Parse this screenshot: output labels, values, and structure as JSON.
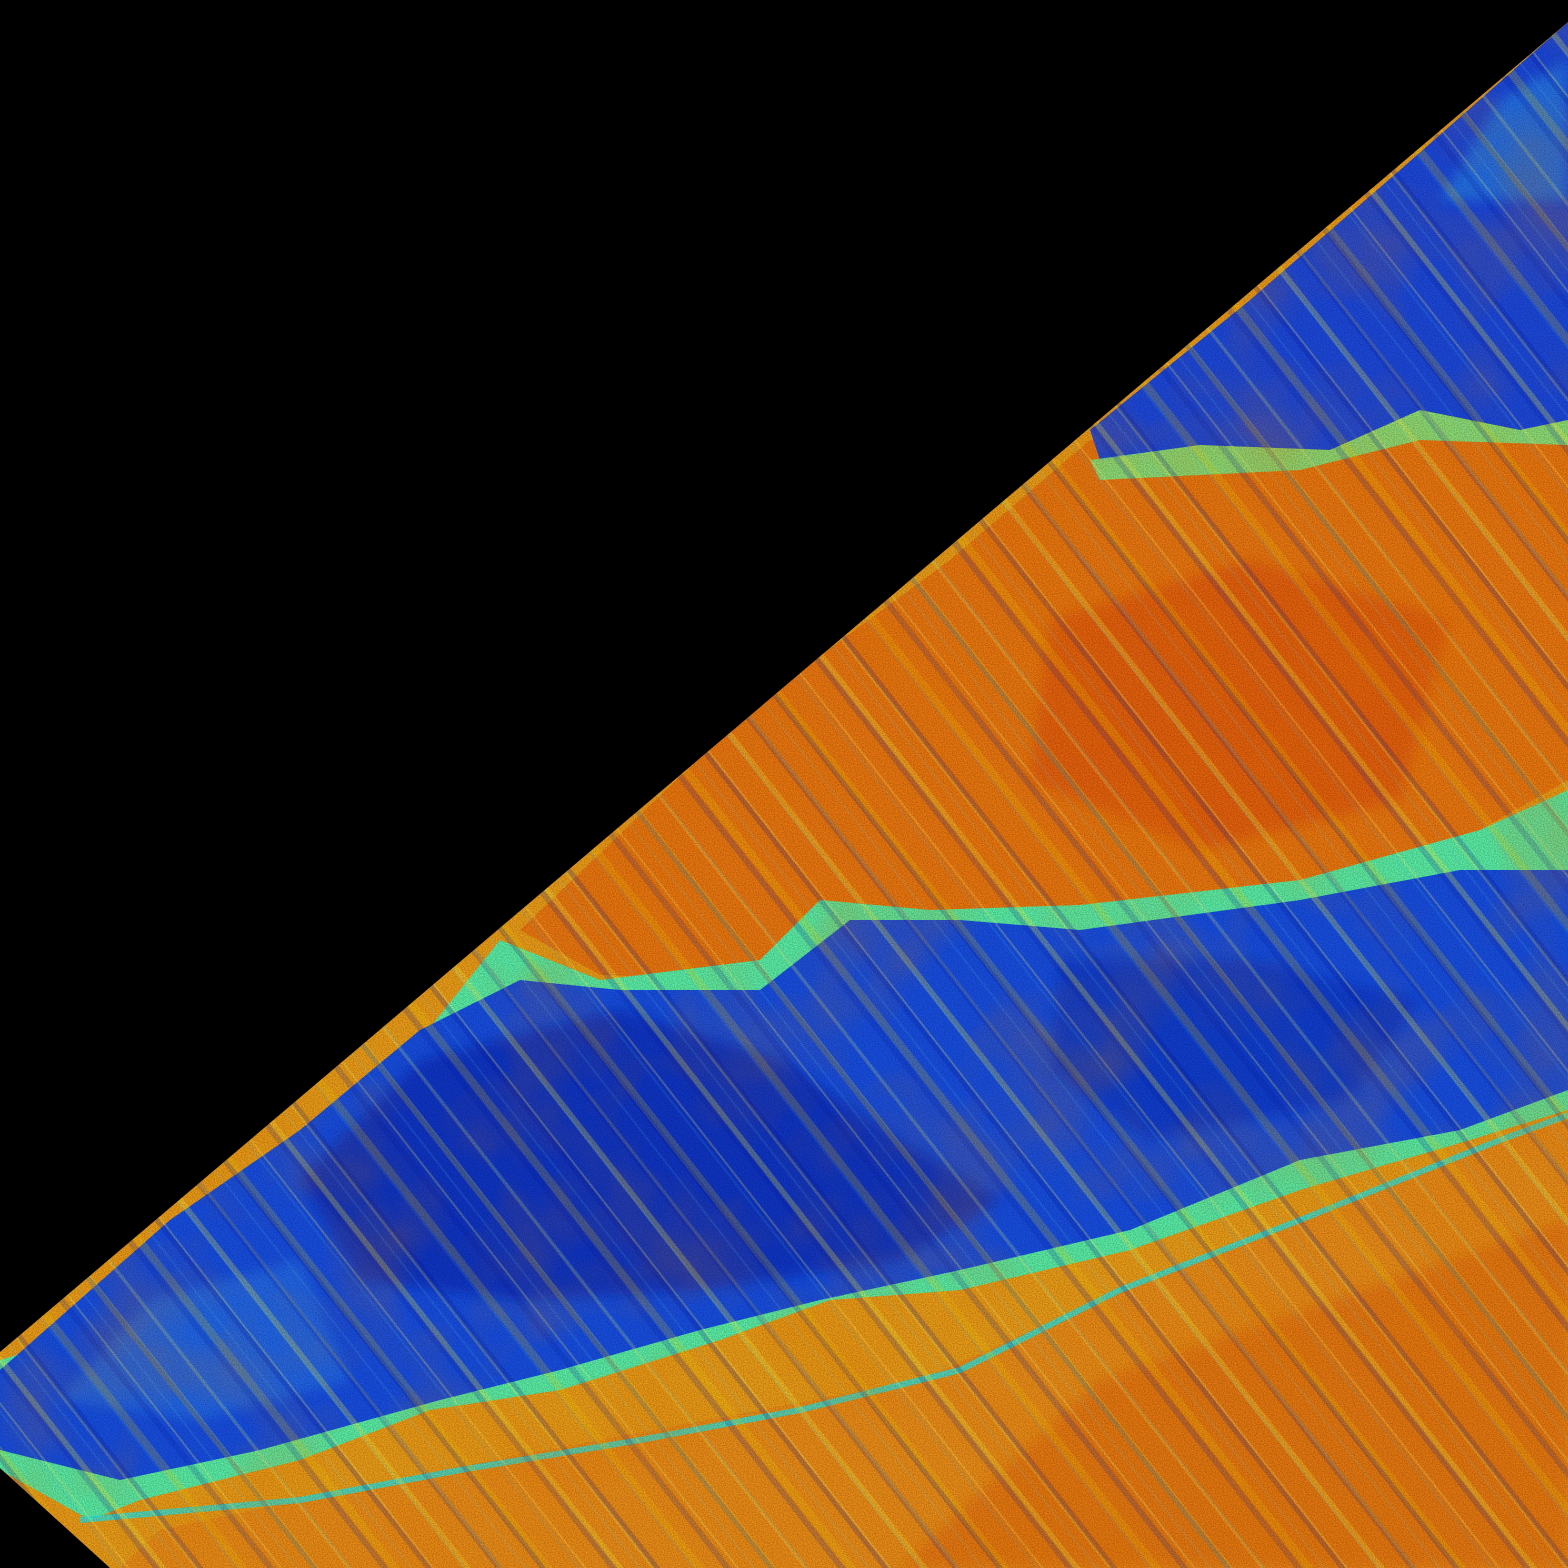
{
  "image": {
    "kind": "false-color raster (jet colormap), diagonal swath over black no-data area",
    "background_color": "#000000",
    "colormap": [
      "#00007f",
      "#0000ff",
      "#007fff",
      "#00ffff",
      "#7fff7f",
      "#ffff00",
      "#ff7f00",
      "#ff0000"
    ],
    "regions": [
      {
        "name": "no-data-area",
        "color": "#000000"
      },
      {
        "name": "upper-blue-band",
        "color": "#1a3fd8"
      },
      {
        "name": "central-warm-band",
        "color": "#f08a12"
      },
      {
        "name": "lower-blue-band",
        "color": "#1850e6"
      },
      {
        "name": "bottom-warm-band",
        "color": "#f09018"
      },
      {
        "name": "transition-cyan-green",
        "color": "#5cf2a8"
      }
    ]
  }
}
